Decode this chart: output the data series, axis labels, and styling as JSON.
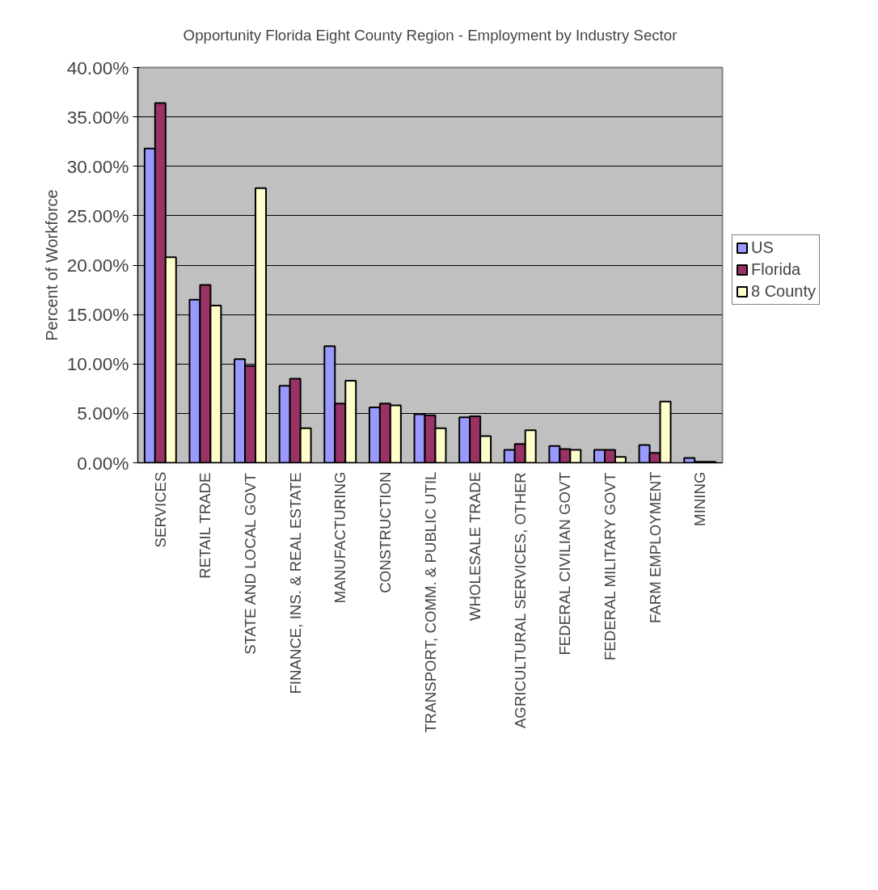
{
  "chart_data": {
    "type": "bar",
    "title": "Opportunity Florida Eight County Region - Employment by Industry Sector",
    "ylabel": "Percent of Workforce",
    "categories": [
      "SERVICES",
      "RETAIL TRADE",
      "STATE AND LOCAL GOVT",
      "FINANCE, INS. & REAL ESTATE",
      "MANUFACTURING",
      "CONSTRUCTION",
      "TRANSPORT, COMM. & PUBLIC UTIL",
      "WHOLESALE TRADE",
      "AGRICULTURAL SERVICES, OTHER",
      "FEDERAL CIVILIAN GOVT",
      "FEDERAL MILITARY GOVT",
      "FARM EMPLOYMENT",
      "MINING"
    ],
    "series": [
      {
        "name": "US",
        "color": "#9999ff",
        "values": [
          31.8,
          16.5,
          10.5,
          7.8,
          11.8,
          5.6,
          4.9,
          4.6,
          1.3,
          1.7,
          1.3,
          1.8,
          0.5
        ]
      },
      {
        "name": "Florida",
        "color": "#993366",
        "values": [
          36.4,
          18.0,
          9.8,
          8.5,
          6.0,
          6.0,
          4.8,
          4.7,
          1.9,
          1.4,
          1.3,
          1.0,
          0.1
        ]
      },
      {
        "name": "8 County",
        "color": "#ffffcc",
        "values": [
          20.8,
          15.9,
          27.8,
          3.5,
          8.3,
          5.8,
          3.5,
          2.7,
          3.3,
          1.3,
          0.6,
          6.2,
          0.1
        ]
      }
    ],
    "ylim": [
      0,
      40
    ],
    "yticks": [
      {
        "value": 0,
        "label": "0.00%"
      },
      {
        "value": 5,
        "label": "5.00%"
      },
      {
        "value": 10,
        "label": "10.00%"
      },
      {
        "value": 15,
        "label": "15.00%"
      },
      {
        "value": 20,
        "label": "20.00%"
      },
      {
        "value": 25,
        "label": "25.00%"
      },
      {
        "value": 30,
        "label": "30.00%"
      },
      {
        "value": 35,
        "label": "35.00%"
      },
      {
        "value": 40,
        "label": "40.00%"
      }
    ],
    "grid": "y",
    "legend": "right"
  }
}
